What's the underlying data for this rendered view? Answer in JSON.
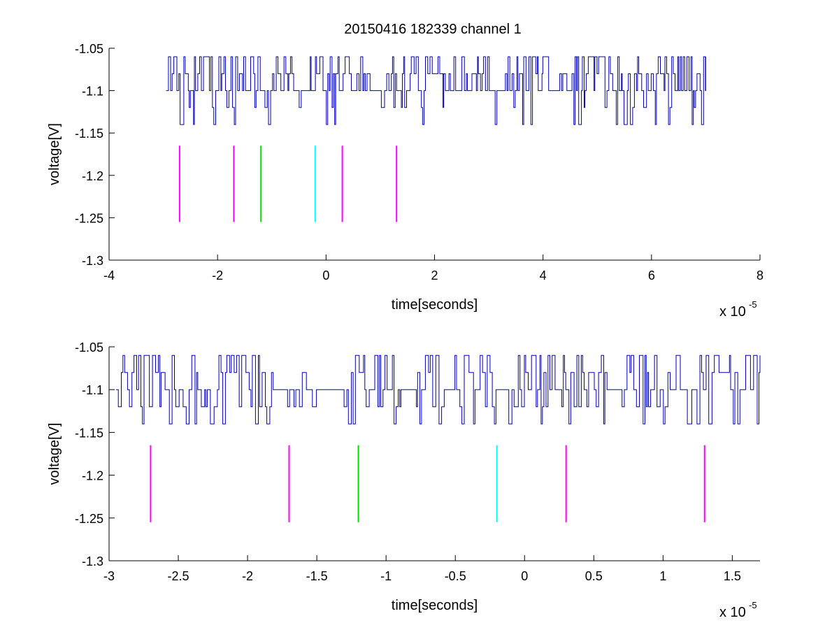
{
  "chart_data": [
    {
      "type": "line",
      "title": "20150416 182339 channel 1",
      "xlabel": "time[seconds]",
      "ylabel": "voltage[V]",
      "x_multiplier": "x 10",
      "x_exponent": "-5",
      "x_unit_scale": 1e-05,
      "xlim": [
        -4,
        8
      ],
      "ylim": [
        -1.3,
        -1.05
      ],
      "xticks": [
        -4,
        -2,
        0,
        2,
        4,
        6,
        8
      ],
      "xtick_labels": [
        "-4",
        "-2",
        "0",
        "2",
        "4",
        "6",
        "8"
      ],
      "yticks": [
        -1.3,
        -1.25,
        -1.2,
        -1.15,
        -1.1,
        -1.05
      ],
      "ytick_labels": [
        "-1.3",
        "-1.25",
        "-1.2",
        "-1.15",
        "-1.1",
        "-1.05"
      ],
      "grid": false,
      "series": [
        {
          "color": "#0000b4",
          "x_range": [
            -2.95,
            7.0
          ],
          "baseline": -1.1,
          "levels": [
            -1.14,
            -1.12,
            -1.1,
            -1.08,
            -1.06
          ]
        }
      ],
      "markers": [
        {
          "x": -2.7,
          "y": [
            -1.255,
            -1.165
          ],
          "color": "#ff00ff"
        },
        {
          "x": -1.7,
          "y": [
            -1.255,
            -1.165
          ],
          "color": "#ff00ff"
        },
        {
          "x": -1.2,
          "y": [
            -1.255,
            -1.165
          ],
          "color": "#00dd00"
        },
        {
          "x": -0.2,
          "y": [
            -1.255,
            -1.165
          ],
          "color": "#00ffff"
        },
        {
          "x": 0.3,
          "y": [
            -1.255,
            -1.165
          ],
          "color": "#ff00ff"
        },
        {
          "x": 1.3,
          "y": [
            -1.255,
            -1.165
          ],
          "color": "#ff00ff"
        }
      ]
    },
    {
      "type": "line",
      "title": "",
      "xlabel": "time[seconds]",
      "ylabel": "voltage[V]",
      "x_multiplier": "x 10",
      "x_exponent": "-5",
      "x_unit_scale": 1e-05,
      "xlim": [
        -3.0,
        1.7
      ],
      "ylim": [
        -1.3,
        -1.05
      ],
      "xticks": [
        -3,
        -2.5,
        -2,
        -1.5,
        -1,
        -0.5,
        0,
        0.5,
        1,
        1.5
      ],
      "xtick_labels": [
        "-3",
        "-2.5",
        "-2",
        "-1.5",
        "-1",
        "-0.5",
        "0",
        "0.5",
        "1",
        "1.5"
      ],
      "yticks": [
        -1.3,
        -1.25,
        -1.2,
        -1.15,
        -1.1,
        -1.05
      ],
      "ytick_labels": [
        "-1.3",
        "-1.25",
        "-1.2",
        "-1.15",
        "-1.1",
        "-1.05"
      ],
      "grid": false,
      "series": [
        {
          "color": "#0000b4",
          "x_range": [
            -2.95,
            1.7
          ],
          "baseline": -1.1,
          "levels": [
            -1.14,
            -1.12,
            -1.1,
            -1.08,
            -1.06
          ]
        }
      ],
      "markers": [
        {
          "x": -2.7,
          "y": [
            -1.255,
            -1.165
          ],
          "color": "#ff00ff"
        },
        {
          "x": -1.7,
          "y": [
            -1.255,
            -1.165
          ],
          "color": "#ff00ff"
        },
        {
          "x": -1.2,
          "y": [
            -1.255,
            -1.165
          ],
          "color": "#00dd00"
        },
        {
          "x": -0.2,
          "y": [
            -1.255,
            -1.165
          ],
          "color": "#00ffff"
        },
        {
          "x": 0.3,
          "y": [
            -1.255,
            -1.165
          ],
          "color": "#ff00ff"
        },
        {
          "x": 1.3,
          "y": [
            -1.255,
            -1.165
          ],
          "color": "#ff00ff"
        }
      ]
    }
  ]
}
